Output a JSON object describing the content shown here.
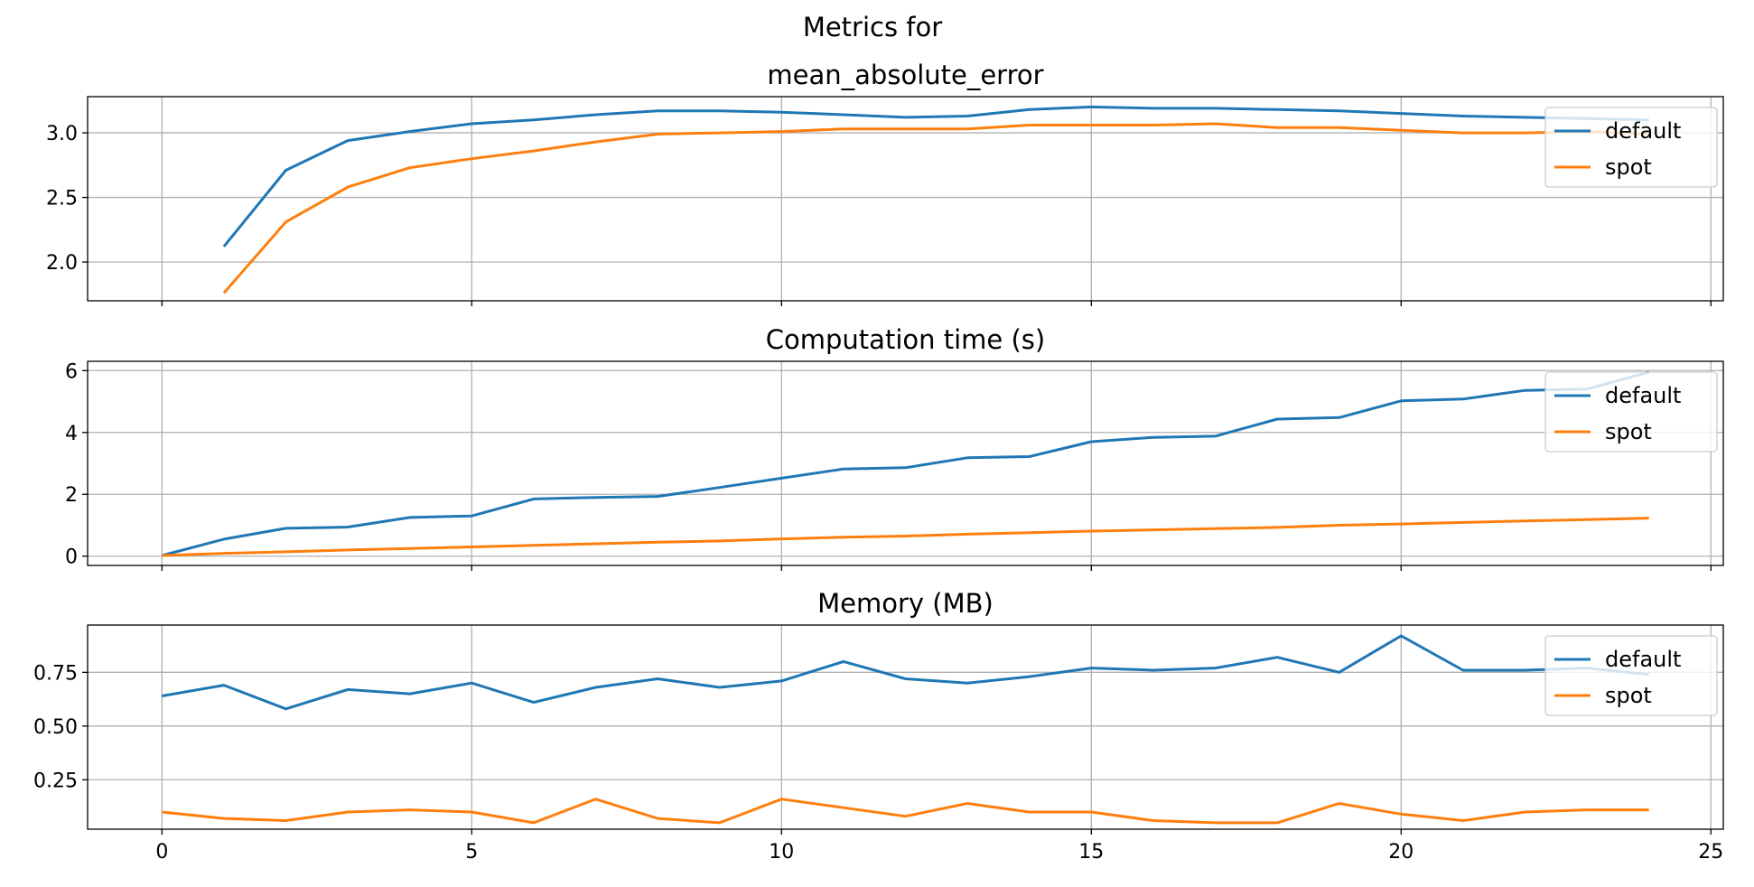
{
  "figure": {
    "suptitle": "Metrics for",
    "colors": {
      "default": "#1f77b4",
      "spot": "#ff7f0e",
      "grid": "#b0b0b0"
    }
  },
  "chart_data": [
    {
      "type": "line",
      "title": "mean_absolute_error",
      "xlabel": "",
      "ylabel": "",
      "xlim": [
        -1.2,
        25.2
      ],
      "ylim": [
        1.7,
        3.28
      ],
      "xticks": [
        0,
        5,
        10,
        15,
        20,
        25
      ],
      "yticks": [
        2.0,
        2.5,
        3.0
      ],
      "ytick_labels": [
        "2.0",
        "2.5",
        "3.0"
      ],
      "show_xtick_labels": false,
      "grid": true,
      "legend": "upper right",
      "series": [
        {
          "name": "default",
          "color": "#1f77b4",
          "x": [
            1,
            2,
            3,
            4,
            5,
            6,
            7,
            8,
            9,
            10,
            11,
            12,
            13,
            14,
            15,
            16,
            17,
            18,
            19,
            20,
            21,
            22,
            23,
            24
          ],
          "values": [
            2.12,
            2.71,
            2.94,
            3.01,
            3.07,
            3.1,
            3.14,
            3.17,
            3.17,
            3.16,
            3.14,
            3.12,
            3.13,
            3.18,
            3.2,
            3.19,
            3.19,
            3.18,
            3.17,
            3.15,
            3.13,
            3.12,
            3.11,
            3.1
          ]
        },
        {
          "name": "spot",
          "color": "#ff7f0e",
          "x": [
            1,
            2,
            3,
            4,
            5,
            6,
            7,
            8,
            9,
            10,
            11,
            12,
            13,
            14,
            15,
            16,
            17,
            18,
            19,
            20,
            21,
            22,
            23,
            24
          ],
          "values": [
            1.76,
            2.31,
            2.58,
            2.73,
            2.8,
            2.86,
            2.93,
            2.99,
            3.0,
            3.01,
            3.03,
            3.03,
            3.03,
            3.06,
            3.06,
            3.06,
            3.07,
            3.04,
            3.04,
            3.02,
            3.0,
            3.0,
            3.01,
            2.99
          ]
        }
      ]
    },
    {
      "type": "line",
      "title": "Computation time (s)",
      "xlabel": "",
      "ylabel": "",
      "xlim": [
        -1.2,
        25.2
      ],
      "ylim": [
        -0.3,
        6.3
      ],
      "xticks": [
        0,
        5,
        10,
        15,
        20,
        25
      ],
      "yticks": [
        0,
        2,
        4,
        6
      ],
      "ytick_labels": [
        "0",
        "2",
        "4",
        "6"
      ],
      "show_xtick_labels": false,
      "grid": true,
      "legend": "upper right",
      "series": [
        {
          "name": "default",
          "color": "#1f77b4",
          "x": [
            0,
            1,
            2,
            3,
            4,
            5,
            6,
            7,
            8,
            9,
            10,
            11,
            12,
            13,
            14,
            15,
            16,
            17,
            18,
            19,
            20,
            21,
            22,
            23,
            24
          ],
          "values": [
            0.02,
            0.55,
            0.9,
            0.94,
            1.25,
            1.3,
            1.85,
            1.9,
            1.93,
            2.22,
            2.52,
            2.82,
            2.86,
            3.18,
            3.22,
            3.7,
            3.84,
            3.88,
            4.43,
            4.48,
            5.02,
            5.08,
            5.36,
            5.4,
            5.95
          ]
        },
        {
          "name": "spot",
          "color": "#ff7f0e",
          "x": [
            0,
            1,
            2,
            3,
            4,
            5,
            6,
            7,
            8,
            9,
            10,
            11,
            12,
            13,
            14,
            15,
            16,
            17,
            18,
            19,
            20,
            21,
            22,
            23,
            24
          ],
          "values": [
            0.02,
            0.09,
            0.14,
            0.2,
            0.25,
            0.3,
            0.35,
            0.4,
            0.45,
            0.49,
            0.56,
            0.61,
            0.65,
            0.71,
            0.76,
            0.81,
            0.85,
            0.89,
            0.93,
            1.0,
            1.04,
            1.09,
            1.14,
            1.18,
            1.23
          ]
        }
      ]
    },
    {
      "type": "line",
      "title": "Memory (MB)",
      "xlabel": "",
      "ylabel": "",
      "xlim": [
        -1.2,
        25.2
      ],
      "ylim": [
        0.02,
        0.97
      ],
      "xticks": [
        0,
        5,
        10,
        15,
        20,
        25
      ],
      "xtick_labels": [
        "0",
        "5",
        "10",
        "15",
        "20",
        "25"
      ],
      "yticks": [
        0.25,
        0.5,
        0.75
      ],
      "ytick_labels": [
        "0.25",
        "0.50",
        "0.75"
      ],
      "show_xtick_labels": true,
      "grid": true,
      "legend": "upper right",
      "series": [
        {
          "name": "default",
          "color": "#1f77b4",
          "x": [
            0,
            1,
            2,
            3,
            4,
            5,
            6,
            7,
            8,
            9,
            10,
            11,
            12,
            13,
            14,
            15,
            16,
            17,
            18,
            19,
            20,
            21,
            22,
            23,
            24
          ],
          "values": [
            0.64,
            0.69,
            0.58,
            0.67,
            0.65,
            0.7,
            0.61,
            0.68,
            0.72,
            0.68,
            0.71,
            0.8,
            0.72,
            0.7,
            0.73,
            0.77,
            0.76,
            0.77,
            0.82,
            0.75,
            0.92,
            0.76,
            0.76,
            0.77,
            0.74
          ]
        },
        {
          "name": "spot",
          "color": "#ff7f0e",
          "x": [
            0,
            1,
            2,
            3,
            4,
            5,
            6,
            7,
            8,
            9,
            10,
            11,
            12,
            13,
            14,
            15,
            16,
            17,
            18,
            19,
            20,
            21,
            22,
            23,
            24
          ],
          "values": [
            0.1,
            0.07,
            0.06,
            0.1,
            0.11,
            0.1,
            0.05,
            0.16,
            0.07,
            0.05,
            0.16,
            0.12,
            0.08,
            0.14,
            0.1,
            0.1,
            0.06,
            0.05,
            0.05,
            0.14,
            0.09,
            0.06,
            0.1,
            0.11,
            0.11
          ]
        }
      ]
    }
  ]
}
